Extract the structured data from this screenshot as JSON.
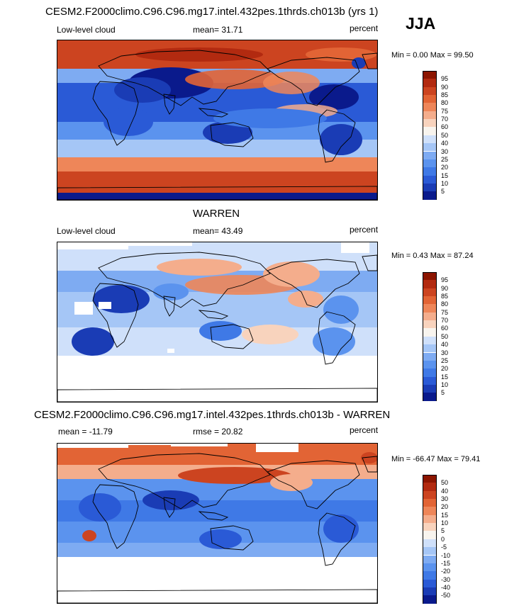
{
  "season": "JJA",
  "panels": [
    {
      "title": "CESM2.F2000climo.C96.C96.mg17.intel.432pes.1thrds.ch013b (yrs 1)",
      "left_label": "Low-level cloud",
      "center_label": "mean=  31.71",
      "right_label": "percent",
      "min_max": "Min =   0.00 Max =  99.50"
    },
    {
      "title": "WARREN",
      "left_label": "Low-level cloud",
      "center_label": "mean=  43.49",
      "right_label": "percent",
      "min_max": "Min =   0.43 Max =  87.24"
    },
    {
      "title": "CESM2.F2000climo.C96.C96.mg17.intel.432pes.1thrds.ch013b - WARREN",
      "left_label": "mean = -11.79",
      "center_label": "rmse =  20.82",
      "right_label": "percent",
      "min_max": "Min = -66.47 Max =  79.41"
    }
  ],
  "chart_data": [
    {
      "type": "heatmap",
      "title": "CESM2.F2000climo.C96.C96.mg17.intel.432pes.1thrds.ch013b (yrs 1)",
      "variable": "Low-level cloud",
      "units": "percent",
      "mean": 31.71,
      "min": 0.0,
      "max": 99.5,
      "colorbar_levels": [
        5,
        10,
        15,
        20,
        25,
        30,
        40,
        50,
        60,
        70,
        75,
        80,
        85,
        90,
        95
      ],
      "colorbar_tick_labels": [
        "95",
        "90",
        "85",
        "80",
        "75",
        "70",
        "60",
        "50",
        "40",
        "30",
        "25",
        "20",
        "15",
        "10",
        "5"
      ]
    },
    {
      "type": "heatmap",
      "title": "WARREN",
      "variable": "Low-level cloud",
      "units": "percent",
      "mean": 43.49,
      "min": 0.43,
      "max": 87.24,
      "colorbar_levels": [
        5,
        10,
        15,
        20,
        25,
        30,
        40,
        50,
        60,
        70,
        75,
        80,
        85,
        90,
        95
      ],
      "colorbar_tick_labels": [
        "95",
        "90",
        "85",
        "80",
        "75",
        "70",
        "60",
        "50",
        "40",
        "30",
        "25",
        "20",
        "15",
        "10",
        "5"
      ]
    },
    {
      "type": "heatmap",
      "title": "CESM2.F2000climo.C96.C96.mg17.intel.432pes.1thrds.ch013b - WARREN",
      "units": "percent",
      "mean": -11.79,
      "rmse": 20.82,
      "min": -66.47,
      "max": 79.41,
      "colorbar_levels": [
        -50,
        -40,
        -30,
        -20,
        -15,
        -10,
        -5,
        0,
        5,
        10,
        15,
        20,
        30,
        40,
        50
      ],
      "colorbar_tick_labels": [
        "50",
        "40",
        "30",
        "20",
        "15",
        "10",
        "5",
        "0",
        "-5",
        "-10",
        "-15",
        "-20",
        "-30",
        "-40",
        "-50"
      ]
    }
  ],
  "palette": [
    "#0a1a8c",
    "#1a3cb5",
    "#2a5ad6",
    "#3f79e6",
    "#5b93ee",
    "#7eabf2",
    "#a5c6f6",
    "#cfe0fa",
    "#f8f4ee",
    "#f8d3bd",
    "#f4ad8c",
    "#ee8659",
    "#e26435",
    "#cc4420",
    "#b22a10",
    "#8c1500"
  ]
}
